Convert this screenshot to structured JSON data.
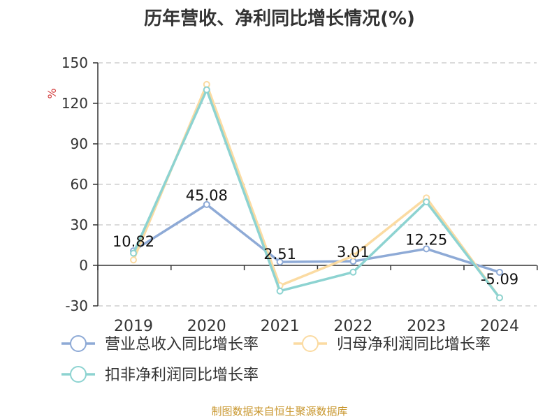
{
  "chart_data": {
    "type": "line",
    "title": "历年营收、净利同比增长情况(%)",
    "ylabel": "%",
    "categories": [
      "2019",
      "2020",
      "2021",
      "2022",
      "2023",
      "2024"
    ],
    "ylim": [
      -30,
      150
    ],
    "yticks": [
      150,
      120,
      90,
      60,
      30,
      0,
      -30
    ],
    "grid": true,
    "legend_position": "bottom-left",
    "series": [
      {
        "name": "营业总收入同比增长率",
        "color": "#8eaad6",
        "values": [
          10.82,
          45.08,
          2.51,
          3.01,
          12.25,
          -5.09
        ],
        "labels": [
          "10.82",
          "45.08",
          "2.51",
          "3.01",
          "12.25",
          "-5.09"
        ]
      },
      {
        "name": "归母净利润同比增长率",
        "color": "#fbdba2",
        "values": [
          4,
          134,
          -15,
          7,
          50,
          -24
        ],
        "labels": null
      },
      {
        "name": "扣非净利润同比增长率",
        "color": "#8dd3d1",
        "values": [
          9,
          130,
          -19,
          -5,
          47,
          -24
        ],
        "labels": null
      }
    ]
  },
  "footer": {
    "source": "制图数据来自恒生聚源数据库"
  }
}
